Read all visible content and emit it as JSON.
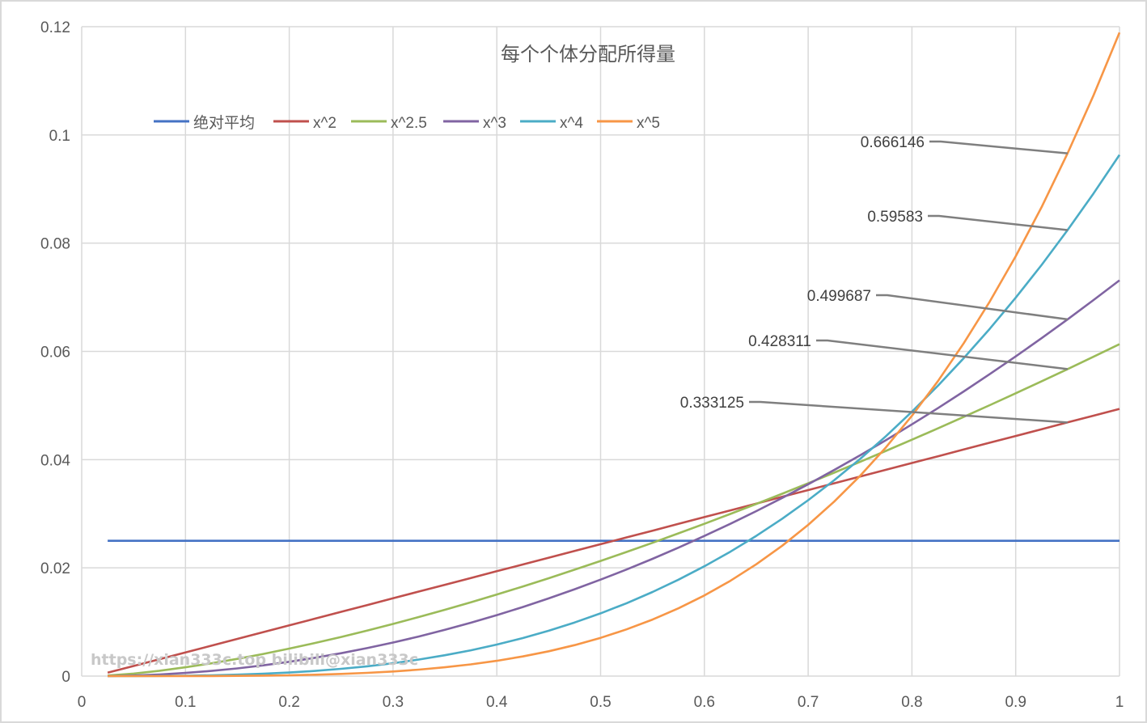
{
  "chart_data": {
    "type": "line",
    "title": "每个个体分配所得量",
    "xlabel": "",
    "ylabel": "",
    "xlim": [
      0,
      1
    ],
    "ylim": [
      0,
      0.12
    ],
    "x_ticks": [
      "0",
      "0.1",
      "0.2",
      "0.3",
      "0.4",
      "0.5",
      "0.6",
      "0.7",
      "0.8",
      "0.9",
      "1"
    ],
    "y_ticks": [
      "0",
      "0.02",
      "0.04",
      "0.06",
      "0.08",
      "0.1",
      "0.12"
    ],
    "grid": true,
    "legend_position": "top-left",
    "n_points": 40,
    "series": [
      {
        "name": "绝对平均",
        "exponent": 1,
        "color": "#4472c4",
        "first": 0.025,
        "last": 0.025
      },
      {
        "name": "x^2",
        "exponent": 2,
        "color": "#c0504d",
        "first": 0.000625,
        "last": 0.049375
      },
      {
        "name": "x^2.5",
        "exponent": 2.5,
        "color": "#9bbb59",
        "first": 0.0001,
        "last": 0.0613
      },
      {
        "name": "x^3",
        "exponent": 3,
        "color": "#8064a2",
        "first": 1.56e-05,
        "last": 0.0731
      },
      {
        "name": "x^4",
        "exponent": 4,
        "color": "#4bacc6",
        "first": 4e-07,
        "last": 0.0963
      },
      {
        "name": "x^5",
        "exponent": 5,
        "color": "#f79646",
        "first": 1e-08,
        "last": 0.1189
      }
    ],
    "annotations": [
      {
        "text": "0.666146",
        "series": "x^5",
        "at_x": 0.95
      },
      {
        "text": "0.59583",
        "series": "x^4",
        "at_x": 0.95
      },
      {
        "text": "0.499687",
        "series": "x^3",
        "at_x": 0.95
      },
      {
        "text": "0.428311",
        "series": "x^2.5",
        "at_x": 0.95
      },
      {
        "text": "0.333125",
        "series": "x^2",
        "at_x": 0.95
      }
    ]
  },
  "watermark": "https://xian333c.top bilibili@xian333c"
}
